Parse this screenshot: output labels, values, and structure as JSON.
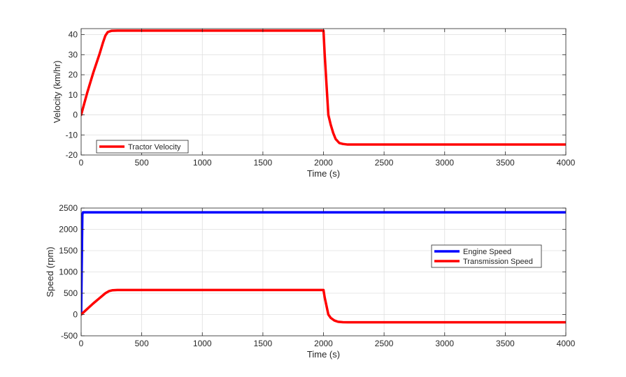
{
  "chart_data": [
    {
      "type": "line",
      "xlabel": "Time (s)",
      "ylabel": "Velocity (km/hr)",
      "xlim": [
        0,
        4000
      ],
      "ylim": [
        -20,
        43
      ],
      "xticks": [
        0,
        500,
        1000,
        1500,
        2000,
        2500,
        3000,
        3500,
        4000
      ],
      "yticks": [
        -20,
        -10,
        0,
        10,
        20,
        30,
        40
      ],
      "grid": true,
      "legend": "bottom-left",
      "series": [
        {
          "name": "Tractor Velocity",
          "color": "#ff0000",
          "x": [
            0,
            50,
            100,
            150,
            180,
            200,
            220,
            250,
            300,
            500,
            1000,
            1500,
            2000,
            2010,
            2040,
            2060,
            2080,
            2100,
            2130,
            2160,
            2200,
            2250,
            2300,
            2500,
            3000,
            3500,
            4000
          ],
          "y": [
            0,
            11,
            21,
            30,
            36,
            39.5,
            41.3,
            41.9,
            42,
            42,
            42,
            42,
            42,
            30,
            0,
            -5,
            -9,
            -12,
            -14,
            -14.5,
            -14.8,
            -14.8,
            -14.8,
            -14.8,
            -14.8,
            -14.8,
            -14.8
          ]
        }
      ]
    },
    {
      "type": "line",
      "xlabel": "Time (s)",
      "ylabel": "Speed (rpm)",
      "xlim": [
        0,
        4000
      ],
      "ylim": [
        -500,
        2500
      ],
      "xticks": [
        0,
        500,
        1000,
        1500,
        2000,
        2500,
        3000,
        3500,
        4000
      ],
      "yticks": [
        -500,
        0,
        500,
        1000,
        1500,
        2000,
        2500
      ],
      "grid": true,
      "legend": "right",
      "series": [
        {
          "name": "Engine Speed",
          "color": "#0000ff",
          "x": [
            0,
            5,
            10,
            15,
            4000
          ],
          "y": [
            0,
            1200,
            2350,
            2400,
            2400
          ]
        },
        {
          "name": "Transmission Speed",
          "color": "#ff0000",
          "x": [
            0,
            50,
            100,
            150,
            200,
            230,
            260,
            300,
            500,
            1000,
            1500,
            2000,
            2010,
            2040,
            2060,
            2090,
            2120,
            2160,
            2200,
            2300,
            2500,
            3000,
            3500,
            4000
          ],
          "y": [
            0,
            130,
            260,
            380,
            500,
            550,
            570,
            575,
            575,
            575,
            575,
            575,
            400,
            0,
            -80,
            -140,
            -170,
            -180,
            -182,
            -182,
            -182,
            -182,
            -182,
            -182
          ]
        }
      ]
    }
  ]
}
